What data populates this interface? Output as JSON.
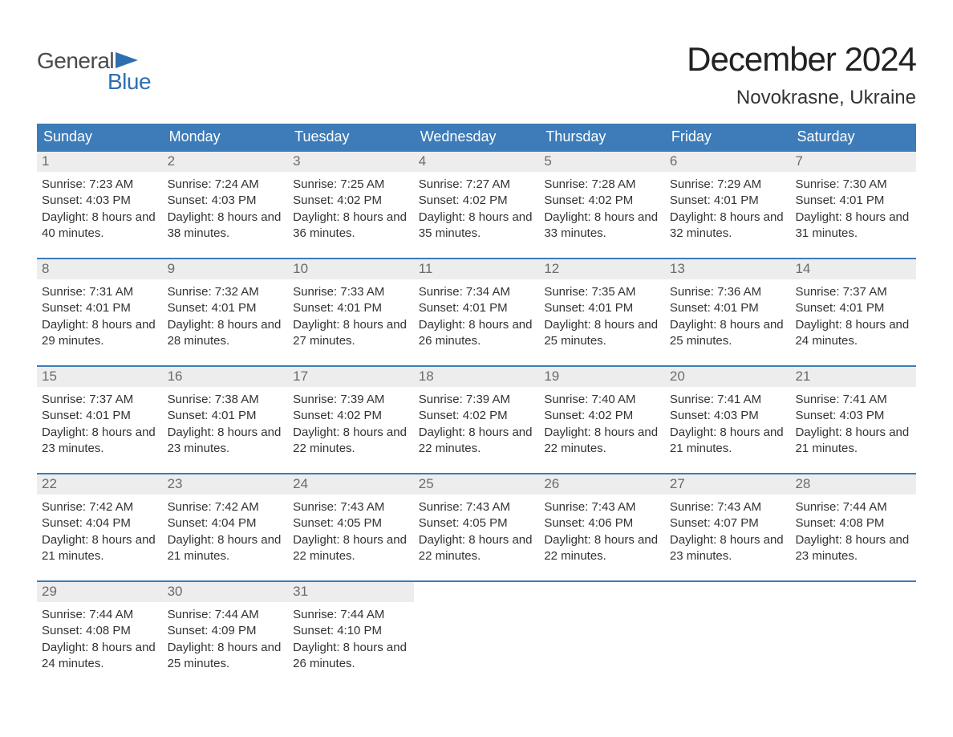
{
  "logo": {
    "part1": "General",
    "part2": "Blue"
  },
  "title": "December 2024",
  "location": "Novokrasne, Ukraine",
  "colors": {
    "brand_blue": "#3d7cb8",
    "logo_blue": "#2f6faf",
    "header_text": "#ffffff",
    "daynum_bg": "#ededed",
    "daynum_text": "#6b6b6b",
    "body_text": "#333333",
    "background": "#ffffff"
  },
  "daysOfWeek": [
    "Sunday",
    "Monday",
    "Tuesday",
    "Wednesday",
    "Thursday",
    "Friday",
    "Saturday"
  ],
  "weeks": [
    [
      {
        "n": "1",
        "sr": "7:23 AM",
        "ss": "4:03 PM",
        "dh": "8",
        "dm": "40"
      },
      {
        "n": "2",
        "sr": "7:24 AM",
        "ss": "4:03 PM",
        "dh": "8",
        "dm": "38"
      },
      {
        "n": "3",
        "sr": "7:25 AM",
        "ss": "4:02 PM",
        "dh": "8",
        "dm": "36"
      },
      {
        "n": "4",
        "sr": "7:27 AM",
        "ss": "4:02 PM",
        "dh": "8",
        "dm": "35"
      },
      {
        "n": "5",
        "sr": "7:28 AM",
        "ss": "4:02 PM",
        "dh": "8",
        "dm": "33"
      },
      {
        "n": "6",
        "sr": "7:29 AM",
        "ss": "4:01 PM",
        "dh": "8",
        "dm": "32"
      },
      {
        "n": "7",
        "sr": "7:30 AM",
        "ss": "4:01 PM",
        "dh": "8",
        "dm": "31"
      }
    ],
    [
      {
        "n": "8",
        "sr": "7:31 AM",
        "ss": "4:01 PM",
        "dh": "8",
        "dm": "29"
      },
      {
        "n": "9",
        "sr": "7:32 AM",
        "ss": "4:01 PM",
        "dh": "8",
        "dm": "28"
      },
      {
        "n": "10",
        "sr": "7:33 AM",
        "ss": "4:01 PM",
        "dh": "8",
        "dm": "27"
      },
      {
        "n": "11",
        "sr": "7:34 AM",
        "ss": "4:01 PM",
        "dh": "8",
        "dm": "26"
      },
      {
        "n": "12",
        "sr": "7:35 AM",
        "ss": "4:01 PM",
        "dh": "8",
        "dm": "25"
      },
      {
        "n": "13",
        "sr": "7:36 AM",
        "ss": "4:01 PM",
        "dh": "8",
        "dm": "25"
      },
      {
        "n": "14",
        "sr": "7:37 AM",
        "ss": "4:01 PM",
        "dh": "8",
        "dm": "24"
      }
    ],
    [
      {
        "n": "15",
        "sr": "7:37 AM",
        "ss": "4:01 PM",
        "dh": "8",
        "dm": "23"
      },
      {
        "n": "16",
        "sr": "7:38 AM",
        "ss": "4:01 PM",
        "dh": "8",
        "dm": "23"
      },
      {
        "n": "17",
        "sr": "7:39 AM",
        "ss": "4:02 PM",
        "dh": "8",
        "dm": "22"
      },
      {
        "n": "18",
        "sr": "7:39 AM",
        "ss": "4:02 PM",
        "dh": "8",
        "dm": "22"
      },
      {
        "n": "19",
        "sr": "7:40 AM",
        "ss": "4:02 PM",
        "dh": "8",
        "dm": "22"
      },
      {
        "n": "20",
        "sr": "7:41 AM",
        "ss": "4:03 PM",
        "dh": "8",
        "dm": "21"
      },
      {
        "n": "21",
        "sr": "7:41 AM",
        "ss": "4:03 PM",
        "dh": "8",
        "dm": "21"
      }
    ],
    [
      {
        "n": "22",
        "sr": "7:42 AM",
        "ss": "4:04 PM",
        "dh": "8",
        "dm": "21"
      },
      {
        "n": "23",
        "sr": "7:42 AM",
        "ss": "4:04 PM",
        "dh": "8",
        "dm": "21"
      },
      {
        "n": "24",
        "sr": "7:43 AM",
        "ss": "4:05 PM",
        "dh": "8",
        "dm": "22"
      },
      {
        "n": "25",
        "sr": "7:43 AM",
        "ss": "4:05 PM",
        "dh": "8",
        "dm": "22"
      },
      {
        "n": "26",
        "sr": "7:43 AM",
        "ss": "4:06 PM",
        "dh": "8",
        "dm": "22"
      },
      {
        "n": "27",
        "sr": "7:43 AM",
        "ss": "4:07 PM",
        "dh": "8",
        "dm": "23"
      },
      {
        "n": "28",
        "sr": "7:44 AM",
        "ss": "4:08 PM",
        "dh": "8",
        "dm": "23"
      }
    ],
    [
      {
        "n": "29",
        "sr": "7:44 AM",
        "ss": "4:08 PM",
        "dh": "8",
        "dm": "24"
      },
      {
        "n": "30",
        "sr": "7:44 AM",
        "ss": "4:09 PM",
        "dh": "8",
        "dm": "25"
      },
      {
        "n": "31",
        "sr": "7:44 AM",
        "ss": "4:10 PM",
        "dh": "8",
        "dm": "26"
      },
      null,
      null,
      null,
      null
    ]
  ],
  "labels": {
    "sunrise": "Sunrise:",
    "sunset": "Sunset:",
    "daylight": "Daylight:",
    "hours": "hours",
    "and": "and",
    "minutes": "minutes."
  }
}
